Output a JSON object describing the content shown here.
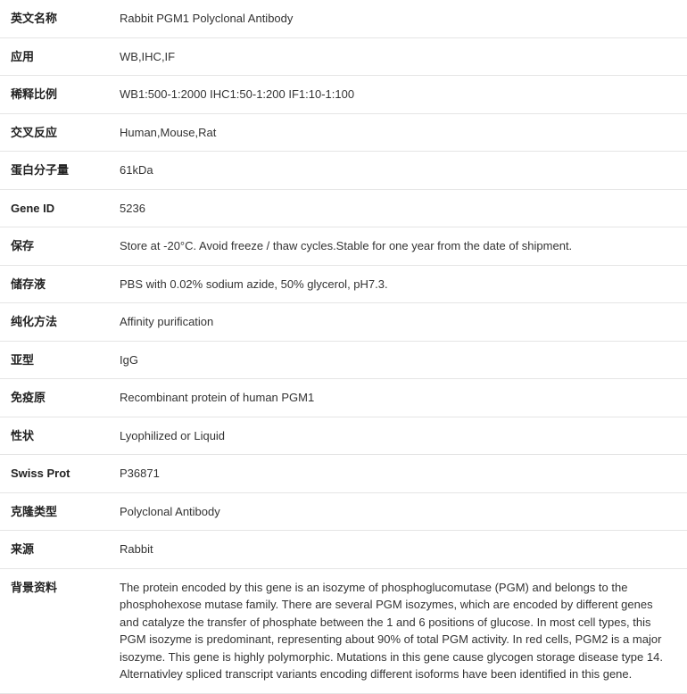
{
  "rows": [
    {
      "label": "英文名称",
      "value": "Rabbit PGM1 Polyclonal Antibody"
    },
    {
      "label": "应用",
      "value": "WB,IHC,IF"
    },
    {
      "label": "稀释比例",
      "value": "WB1:500-1:2000 IHC1:50-1:200 IF1:10-1:100"
    },
    {
      "label": "交叉反应",
      "value": "Human,Mouse,Rat"
    },
    {
      "label": "蛋白分子量",
      "value": "61kDa"
    },
    {
      "label": "Gene ID",
      "value": "5236"
    },
    {
      "label": "保存",
      "value": "Store at -20°C. Avoid freeze / thaw cycles.Stable for one year from the date of shipment."
    },
    {
      "label": "储存液",
      "value": "PBS with 0.02% sodium azide, 50% glycerol, pH7.3."
    },
    {
      "label": "纯化方法",
      "value": "Affinity purification"
    },
    {
      "label": "亚型",
      "value": "IgG"
    },
    {
      "label": "免疫原",
      "value": "Recombinant protein of human PGM1"
    },
    {
      "label": "性状",
      "value": "Lyophilized or Liquid"
    },
    {
      "label": "Swiss Prot",
      "value": "P36871"
    },
    {
      "label": "克隆类型",
      "value": "Polyclonal Antibody"
    },
    {
      "label": "来源",
      "value": "Rabbit"
    },
    {
      "label": "背景资料",
      "value": "The protein encoded by this gene is an isozyme of phosphoglucomutase (PGM) and belongs to the phosphohexose mutase family. There are several PGM isozymes, which are encoded by different genes and catalyze the transfer of phosphate between the 1 and 6 positions of glucose. In most cell types, this PGM isozyme is predominant, representing about 90% of total PGM activity. In red cells, PGM2 is a major isozyme. This gene is highly polymorphic. Mutations in this gene cause glycogen storage disease type 14. Alternativley spliced transcript variants encoding different isoforms have been identified in this gene."
    }
  ]
}
